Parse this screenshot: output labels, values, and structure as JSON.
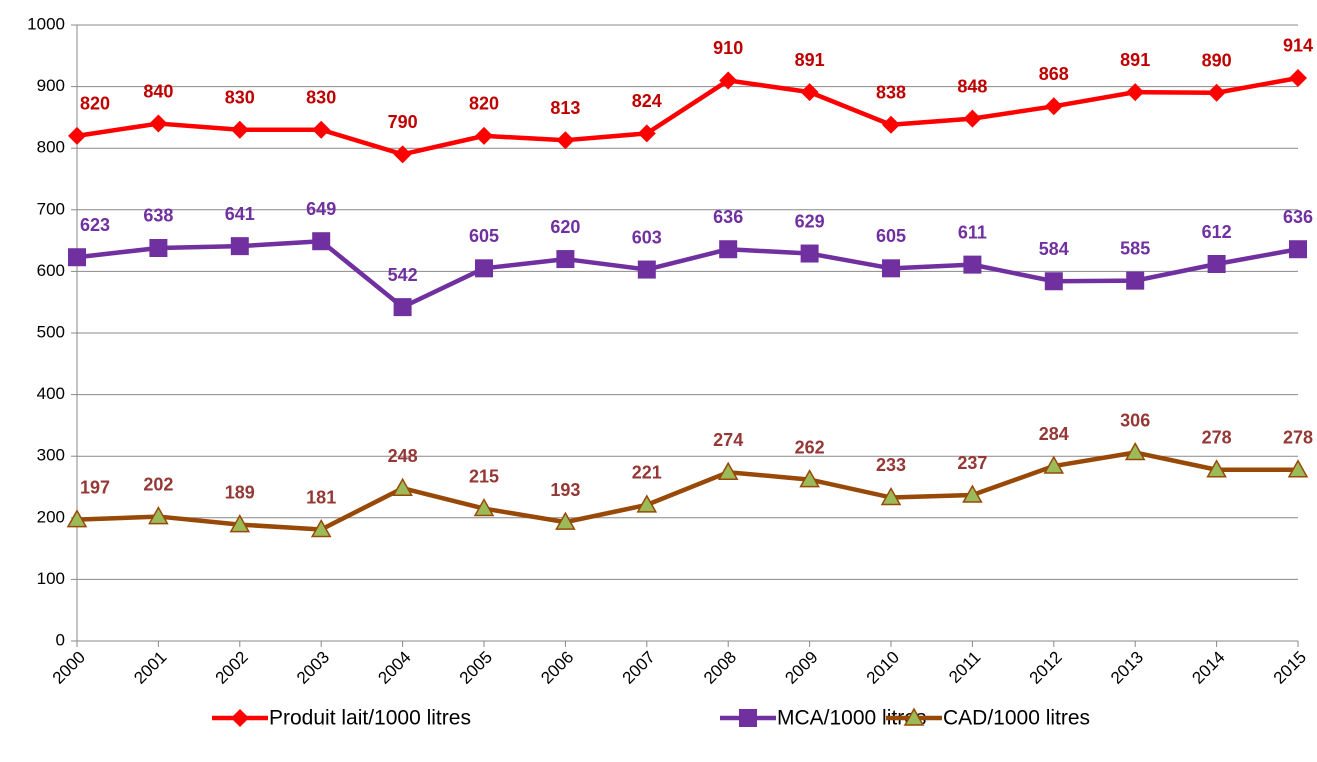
{
  "chart_data": {
    "type": "line",
    "categories": [
      "2000",
      "2001",
      "2002",
      "2003",
      "2004",
      "2005",
      "2006",
      "2007",
      "2008",
      "2009",
      "2010",
      "2011",
      "2012",
      "2013",
      "2014",
      "2015"
    ],
    "series": [
      {
        "name": "Produit lait/1000 litres",
        "color": "#ff0000",
        "marker": "diamond",
        "marker_color": "#ff0000",
        "label_color": "#c00000",
        "values": [
          820,
          840,
          830,
          830,
          790,
          820,
          813,
          824,
          910,
          891,
          838,
          848,
          868,
          891,
          890,
          914
        ]
      },
      {
        "name": "MCA/1000 litres",
        "color": "#7030a0",
        "marker": "square",
        "marker_color": "#7030a0",
        "label_color": "#7030a0",
        "values": [
          623,
          638,
          641,
          649,
          542,
          605,
          620,
          603,
          636,
          629,
          605,
          611,
          584,
          585,
          612,
          636
        ]
      },
      {
        "name": "CAD/1000 litres",
        "color": "#984807",
        "marker": "triangle",
        "marker_color": "#9bbb59",
        "label_color": "#953735",
        "values": [
          197,
          202,
          189,
          181,
          248,
          215,
          193,
          221,
          274,
          262,
          233,
          237,
          284,
          306,
          278,
          278
        ]
      }
    ],
    "ylim": [
      0,
      1000
    ],
    "yticks": [
      0,
      100,
      200,
      300,
      400,
      500,
      600,
      700,
      800,
      900,
      1000
    ],
    "grid": true,
    "legend": "bottom"
  }
}
